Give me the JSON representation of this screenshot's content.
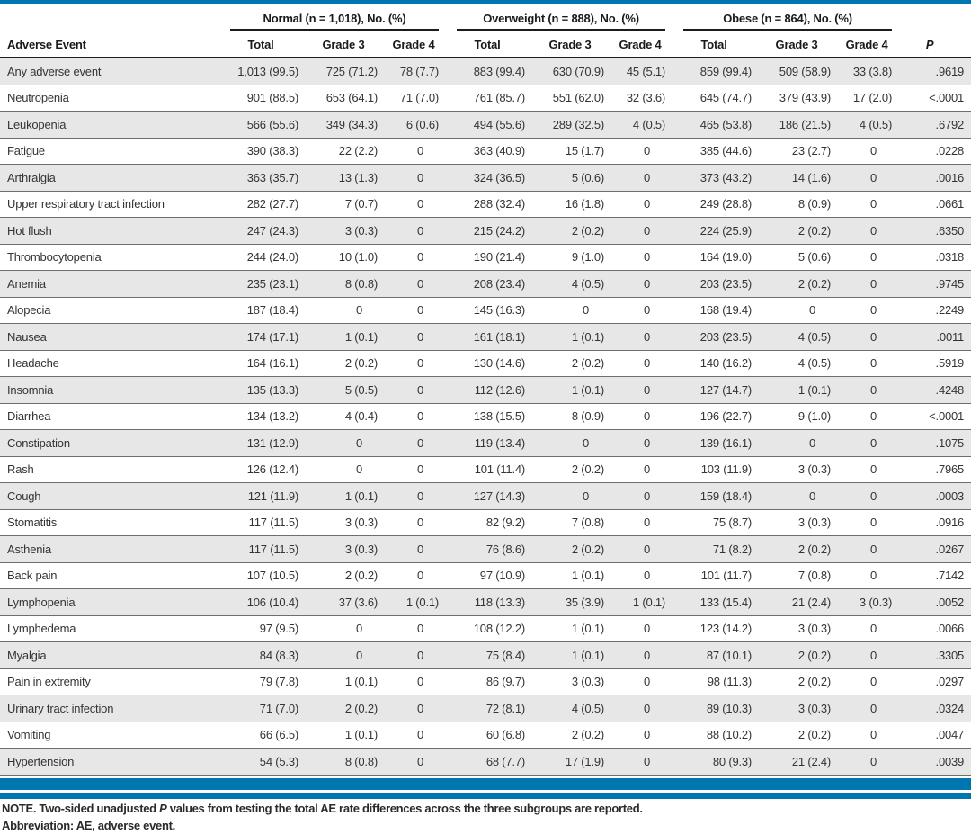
{
  "colors": {
    "accent": "#0076b0",
    "row_shade": "#e7e7e7",
    "rule": "#6e6e6e"
  },
  "table": {
    "groups": [
      {
        "label": "Normal (n = 1,018), No. (%)"
      },
      {
        "label": "Overweight (n = 888), No. (%)"
      },
      {
        "label": "Obese (n = 864), No. (%)"
      }
    ],
    "columns": {
      "event": "Adverse Event",
      "sub": [
        "Total",
        "Grade 3",
        "Grade 4"
      ],
      "p": "P"
    },
    "rows": [
      {
        "event": "Any adverse event",
        "cells": [
          "1,013 (99.5)",
          "725 (71.2)",
          "78 (7.7)",
          "883 (99.4)",
          "630 (70.9)",
          "45 (5.1)",
          "859 (99.4)",
          "509 (58.9)",
          "33 (3.8)"
        ],
        "p": ".9619"
      },
      {
        "event": "Neutropenia",
        "cells": [
          "901 (88.5)",
          "653 (64.1)",
          "71 (7.0)",
          "761 (85.7)",
          "551 (62.0)",
          "32 (3.6)",
          "645 (74.7)",
          "379 (43.9)",
          "17 (2.0)"
        ],
        "p": "<.0001"
      },
      {
        "event": "Leukopenia",
        "cells": [
          "566 (55.6)",
          "349 (34.3)",
          "6 (0.6)",
          "494 (55.6)",
          "289 (32.5)",
          "4 (0.5)",
          "465 (53.8)",
          "186 (21.5)",
          "4 (0.5)"
        ],
        "p": ".6792"
      },
      {
        "event": "Fatigue",
        "cells": [
          "390 (38.3)",
          "22 (2.2)",
          "0",
          "363 (40.9)",
          "15 (1.7)",
          "0",
          "385 (44.6)",
          "23 (2.7)",
          "0"
        ],
        "p": ".0228"
      },
      {
        "event": "Arthralgia",
        "cells": [
          "363 (35.7)",
          "13 (1.3)",
          "0",
          "324 (36.5)",
          "5 (0.6)",
          "0",
          "373 (43.2)",
          "14 (1.6)",
          "0"
        ],
        "p": ".0016"
      },
      {
        "event": "Upper respiratory tract infection",
        "cells": [
          "282 (27.7)",
          "7 (0.7)",
          "0",
          "288 (32.4)",
          "16 (1.8)",
          "0",
          "249 (28.8)",
          "8 (0.9)",
          "0"
        ],
        "p": ".0661"
      },
      {
        "event": "Hot flush",
        "cells": [
          "247 (24.3)",
          "3 (0.3)",
          "0",
          "215 (24.2)",
          "2 (0.2)",
          "0",
          "224 (25.9)",
          "2 (0.2)",
          "0"
        ],
        "p": ".6350"
      },
      {
        "event": "Thrombocytopenia",
        "cells": [
          "244 (24.0)",
          "10 (1.0)",
          "0",
          "190 (21.4)",
          "9 (1.0)",
          "0",
          "164 (19.0)",
          "5 (0.6)",
          "0"
        ],
        "p": ".0318"
      },
      {
        "event": "Anemia",
        "cells": [
          "235 (23.1)",
          "8 (0.8)",
          "0",
          "208 (23.4)",
          "4 (0.5)",
          "0",
          "203 (23.5)",
          "2 (0.2)",
          "0"
        ],
        "p": ".9745"
      },
      {
        "event": "Alopecia",
        "cells": [
          "187 (18.4)",
          "0",
          "0",
          "145 (16.3)",
          "0",
          "0",
          "168 (19.4)",
          "0",
          "0"
        ],
        "p": ".2249"
      },
      {
        "event": "Nausea",
        "cells": [
          "174 (17.1)",
          "1 (0.1)",
          "0",
          "161 (18.1)",
          "1 (0.1)",
          "0",
          "203 (23.5)",
          "4 (0.5)",
          "0"
        ],
        "p": ".0011"
      },
      {
        "event": "Headache",
        "cells": [
          "164 (16.1)",
          "2 (0.2)",
          "0",
          "130 (14.6)",
          "2 (0.2)",
          "0",
          "140 (16.2)",
          "4 (0.5)",
          "0"
        ],
        "p": ".5919"
      },
      {
        "event": "Insomnia",
        "cells": [
          "135 (13.3)",
          "5 (0.5)",
          "0",
          "112 (12.6)",
          "1 (0.1)",
          "0",
          "127 (14.7)",
          "1 (0.1)",
          "0"
        ],
        "p": ".4248"
      },
      {
        "event": "Diarrhea",
        "cells": [
          "134 (13.2)",
          "4 (0.4)",
          "0",
          "138 (15.5)",
          "8 (0.9)",
          "0",
          "196 (22.7)",
          "9 (1.0)",
          "0"
        ],
        "p": "<.0001"
      },
      {
        "event": "Constipation",
        "cells": [
          "131 (12.9)",
          "0",
          "0",
          "119 (13.4)",
          "0",
          "0",
          "139 (16.1)",
          "0",
          "0"
        ],
        "p": ".1075"
      },
      {
        "event": "Rash",
        "cells": [
          "126 (12.4)",
          "0",
          "0",
          "101 (11.4)",
          "2 (0.2)",
          "0",
          "103 (11.9)",
          "3 (0.3)",
          "0"
        ],
        "p": ".7965"
      },
      {
        "event": "Cough",
        "cells": [
          "121 (11.9)",
          "1 (0.1)",
          "0",
          "127 (14.3)",
          "0",
          "0",
          "159 (18.4)",
          "0",
          "0"
        ],
        "p": ".0003"
      },
      {
        "event": "Stomatitis",
        "cells": [
          "117 (11.5)",
          "3 (0.3)",
          "0",
          "82 (9.2)",
          "7 (0.8)",
          "0",
          "75 (8.7)",
          "3 (0.3)",
          "0"
        ],
        "p": ".0916"
      },
      {
        "event": "Asthenia",
        "cells": [
          "117 (11.5)",
          "3 (0.3)",
          "0",
          "76 (8.6)",
          "2 (0.2)",
          "0",
          "71 (8.2)",
          "2 (0.2)",
          "0"
        ],
        "p": ".0267"
      },
      {
        "event": "Back pain",
        "cells": [
          "107 (10.5)",
          "2 (0.2)",
          "0",
          "97 (10.9)",
          "1 (0.1)",
          "0",
          "101 (11.7)",
          "7 (0.8)",
          "0"
        ],
        "p": ".7142"
      },
      {
        "event": "Lymphopenia",
        "cells": [
          "106 (10.4)",
          "37 (3.6)",
          "1 (0.1)",
          "118 (13.3)",
          "35 (3.9)",
          "1 (0.1)",
          "133 (15.4)",
          "21 (2.4)",
          "3 (0.3)"
        ],
        "p": ".0052"
      },
      {
        "event": "Lymphedema",
        "cells": [
          "97 (9.5)",
          "0",
          "0",
          "108 (12.2)",
          "1 (0.1)",
          "0",
          "123 (14.2)",
          "3 (0.3)",
          "0"
        ],
        "p": ".0066"
      },
      {
        "event": "Myalgia",
        "cells": [
          "84 (8.3)",
          "0",
          "0",
          "75 (8.4)",
          "1 (0.1)",
          "0",
          "87 (10.1)",
          "2 (0.2)",
          "0"
        ],
        "p": ".3305"
      },
      {
        "event": "Pain in extremity",
        "cells": [
          "79 (7.8)",
          "1 (0.1)",
          "0",
          "86 (9.7)",
          "3 (0.3)",
          "0",
          "98 (11.3)",
          "2 (0.2)",
          "0"
        ],
        "p": ".0297"
      },
      {
        "event": "Urinary tract infection",
        "cells": [
          "71 (7.0)",
          "2 (0.2)",
          "0",
          "72 (8.1)",
          "4 (0.5)",
          "0",
          "89 (10.3)",
          "3 (0.3)",
          "0"
        ],
        "p": ".0324"
      },
      {
        "event": "Vomiting",
        "cells": [
          "66 (6.5)",
          "1 (0.1)",
          "0",
          "60 (6.8)",
          "2 (0.2)",
          "0",
          "88 (10.2)",
          "2 (0.2)",
          "0"
        ],
        "p": ".0047"
      },
      {
        "event": "Hypertension",
        "cells": [
          "54 (5.3)",
          "8 (0.8)",
          "0",
          "68 (7.7)",
          "17 (1.9)",
          "0",
          "80 (9.3)",
          "21 (2.4)",
          "0"
        ],
        "p": ".0039"
      }
    ]
  },
  "footnotes": {
    "note_prefix": "NOTE. Two-sided unadjusted ",
    "note_italic": "P",
    "note_suffix": " values from testing the total AE rate differences across the three subgroups are reported.",
    "abbreviation": "Abbreviation: AE, adverse event."
  }
}
